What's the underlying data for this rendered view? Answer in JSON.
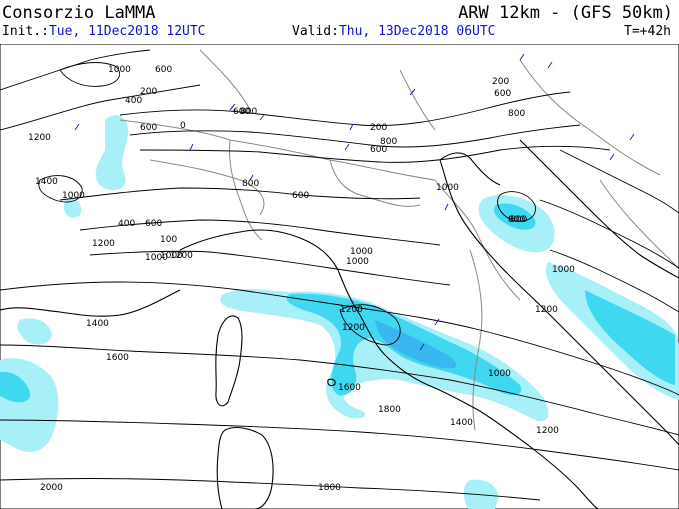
{
  "header": {
    "producer": "Consorzio LaMMA",
    "model": "ARW 12km - (GFS 50km)",
    "init_label": "Init.:",
    "init_value": "Tue, 11Dec2018 12UTC",
    "valid_label": "Valid:",
    "valid_value": "Thu, 13Dec2018 06UTC",
    "timestep": "T=+42h"
  },
  "colors": {
    "precip_light": "#a8f0f8",
    "precip_medium": "#40d8f0",
    "precip_heavy": "#3090f0",
    "contour": "#000000",
    "coast": "#000000",
    "border": "#888888",
    "header_accent": "#1010d0",
    "wind_barb": "#2020d0"
  },
  "contour_labels": [
    {
      "id": "c1",
      "text": "1000"
    },
    {
      "id": "c2",
      "text": "600"
    },
    {
      "id": "c3",
      "text": "200"
    },
    {
      "id": "c4",
      "text": "400"
    },
    {
      "id": "c5",
      "text": "600"
    },
    {
      "id": "c6",
      "text": "0"
    },
    {
      "id": "c7",
      "text": "600"
    },
    {
      "id": "c8",
      "text": "1200"
    },
    {
      "id": "c9",
      "text": "1400"
    },
    {
      "id": "c10",
      "text": "1000"
    },
    {
      "id": "c11",
      "text": "600"
    },
    {
      "id": "c12",
      "text": "400"
    },
    {
      "id": "c13",
      "text": "1200"
    },
    {
      "id": "c14",
      "text": "800"
    },
    {
      "id": "c15",
      "text": "100"
    },
    {
      "id": "c16",
      "text": "1000"
    },
    {
      "id": "c17",
      "text": "200"
    },
    {
      "id": "c18",
      "text": "600"
    },
    {
      "id": "c19",
      "text": "800"
    },
    {
      "id": "c20",
      "text": "800"
    },
    {
      "id": "c21",
      "text": "600"
    },
    {
      "id": "c22",
      "text": "1000"
    },
    {
      "id": "c23",
      "text": "1000"
    },
    {
      "id": "c24",
      "text": "200"
    },
    {
      "id": "c25",
      "text": "600"
    },
    {
      "id": "c26",
      "text": "800"
    },
    {
      "id": "c27",
      "text": "1000"
    },
    {
      "id": "c28",
      "text": "800"
    },
    {
      "id": "c29",
      "text": "1000"
    },
    {
      "id": "c30",
      "text": "1200"
    },
    {
      "id": "c31",
      "text": "1200"
    },
    {
      "id": "c32",
      "text": "1400"
    },
    {
      "id": "c33",
      "text": "1600"
    },
    {
      "id": "c34",
      "text": "1000"
    },
    {
      "id": "c35",
      "text": "1600"
    },
    {
      "id": "c36",
      "text": "1800"
    },
    {
      "id": "c37",
      "text": "1400"
    },
    {
      "id": "c38",
      "text": "1200"
    },
    {
      "id": "c39",
      "text": "2000"
    },
    {
      "id": "c40",
      "text": "1800"
    },
    {
      "id": "c41",
      "text": "1000"
    },
    {
      "id": "c42",
      "text": "800"
    },
    {
      "id": "c43",
      "text": "1200"
    },
    {
      "id": "c44",
      "text": "1200"
    }
  ]
}
